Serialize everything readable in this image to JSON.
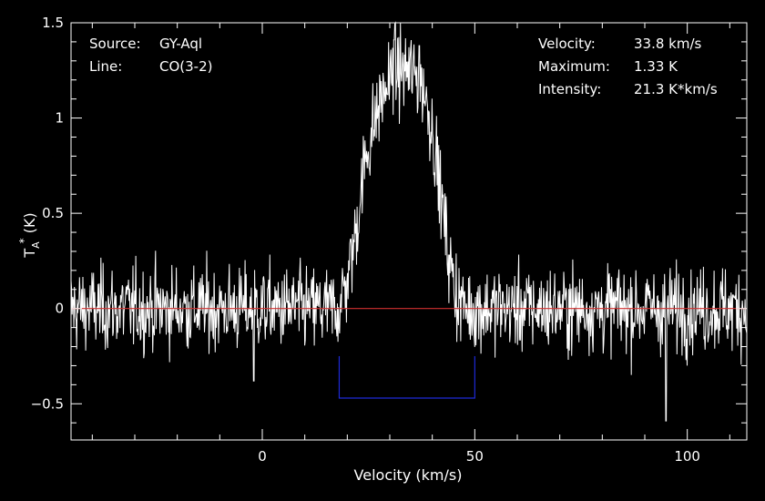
{
  "info": {
    "source_label": "Source:",
    "source_value": "GY-Aql",
    "line_label": "Line:",
    "line_value": "CO(3-2)",
    "velocity_label": "Velocity:",
    "velocity_value": "33.8 km/s",
    "maximum_label": "Maximum:",
    "maximum_value": "1.33 K",
    "intensity_label": "Intensity:",
    "intensity_value": "21.3 K*km/s"
  },
  "colors": {
    "background": "#000000",
    "foreground": "#ffffff",
    "baseline": "#d03030",
    "window": "#1e2ad8"
  },
  "chart_data": {
    "type": "line",
    "xlabel": "Velocity (km/s)",
    "ylabel": "T_A* (K)",
    "ylabel_main": "T",
    "ylabel_sub": "A",
    "ylabel_sup": "*",
    "ylabel_unit": "(K)",
    "xlim": [
      -45,
      114
    ],
    "ylim": [
      -0.69,
      1.5
    ],
    "x_ticks": [
      {
        "value": 0,
        "label": "0"
      },
      {
        "value": 50,
        "label": "50"
      },
      {
        "value": 100,
        "label": "100"
      }
    ],
    "y_ticks": [
      {
        "value": 1.5,
        "label": "1.5"
      },
      {
        "value": 1,
        "label": "1"
      },
      {
        "value": 0.5,
        "label": "0.5"
      },
      {
        "value": 0,
        "label": "0"
      },
      {
        "value": -0.5,
        "label": "−0.5"
      }
    ],
    "baseline_value": 0,
    "integration_window": {
      "x_start": 18.1,
      "x_end": 50,
      "y_bottom": -0.47,
      "y_top": -0.25
    },
    "line_profile": {
      "x": [
        -45,
        18,
        20,
        22,
        24,
        26,
        28,
        30,
        32,
        34,
        36,
        38,
        40,
        42,
        44,
        46,
        48,
        114
      ],
      "y": [
        0,
        0,
        0.15,
        0.4,
        0.75,
        0.95,
        1.1,
        1.2,
        1.25,
        1.25,
        1.22,
        1.15,
        0.95,
        0.6,
        0.25,
        0.05,
        0,
        0
      ]
    },
    "noise_rms": 0.11,
    "notable_points": [
      {
        "x": 31,
        "y": 1.41
      },
      {
        "x": 37,
        "y": 1.38
      },
      {
        "x": 95,
        "y": -0.59
      },
      {
        "x": -2,
        "y": -0.38
      }
    ]
  }
}
